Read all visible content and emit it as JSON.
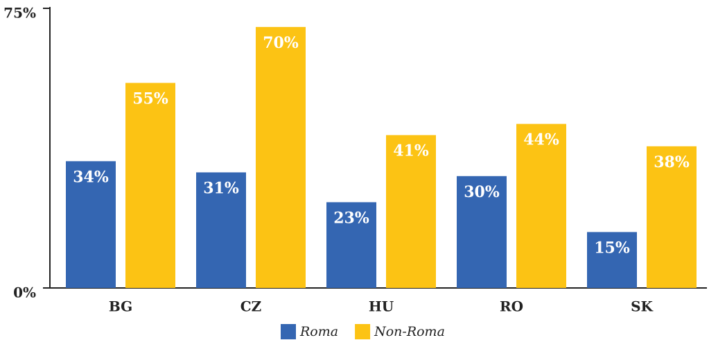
{
  "chart_data": {
    "type": "bar",
    "categories": [
      "BG",
      "CZ",
      "HU",
      "RO",
      "SK"
    ],
    "series": [
      {
        "name": "Roma",
        "color": "#3466b2",
        "values": [
          34,
          31,
          23,
          30,
          15
        ],
        "value_labels": [
          "34%",
          "31%",
          "23%",
          "30%",
          "15%"
        ]
      },
      {
        "name": "Non-Roma",
        "color": "#fcc314",
        "values": [
          55,
          70,
          41,
          44,
          38
        ],
        "value_labels": [
          "55%",
          "70%",
          "41%",
          "44%",
          "38%"
        ]
      }
    ],
    "ylim": [
      0,
      75
    ],
    "yticks": [
      {
        "value": 0,
        "label": "0%"
      },
      {
        "value": 75,
        "label": "75%"
      }
    ],
    "legend": "bottom"
  }
}
